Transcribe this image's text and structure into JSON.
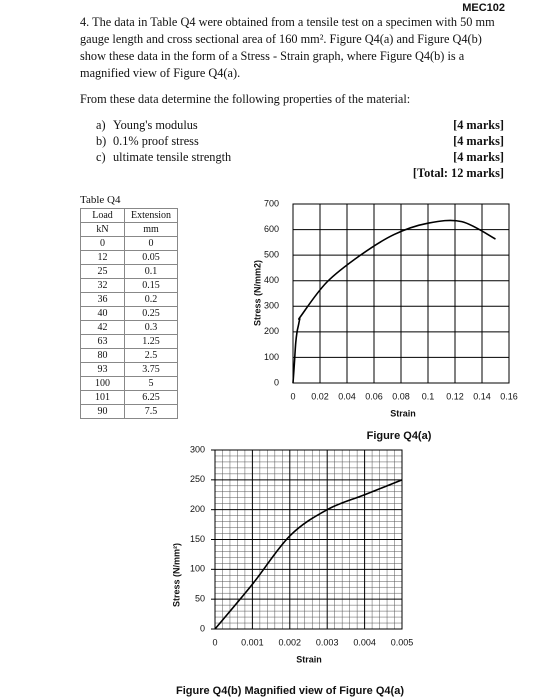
{
  "header": {
    "code": "MEC102"
  },
  "question": {
    "number": "4.",
    "text": "The data in Table Q4 were obtained from a tensile test on a specimen with 50 mm gauge length and cross sectional area of 160 mm². Figure Q4(a) and Figure Q4(b) show these data in the form of a Stress - Strain graph, where Figure Q4(b) is a magnified view of Figure Q4(a).",
    "prompt": "From these data determine the following properties of the material:"
  },
  "items": [
    {
      "label": "a)",
      "text": "Young's modulus",
      "marks": "[4 marks]"
    },
    {
      "label": "b)",
      "text": "0.1% proof stress",
      "marks": "[4 marks]"
    },
    {
      "label": "c)",
      "text": "ultimate tensile strength",
      "marks": "[4 marks]"
    }
  ],
  "total": "[Total: 12 marks]",
  "table": {
    "caption": "Table Q4",
    "header": [
      [
        "Load",
        "Extension"
      ],
      [
        "kN",
        "mm"
      ]
    ],
    "rows": [
      [
        "0",
        "0"
      ],
      [
        "12",
        "0.05"
      ],
      [
        "25",
        "0.1"
      ],
      [
        "32",
        "0.15"
      ],
      [
        "36",
        "0.2"
      ],
      [
        "40",
        "0.25"
      ],
      [
        "42",
        "0.3"
      ],
      [
        "63",
        "1.25"
      ],
      [
        "80",
        "2.5"
      ],
      [
        "93",
        "3.75"
      ],
      [
        "100",
        "5"
      ],
      [
        "101",
        "6.25"
      ],
      [
        "90",
        "7.5"
      ]
    ]
  },
  "chart_data": [
    {
      "type": "line",
      "title": "Figure Q4(a)",
      "xlabel": "Strain",
      "ylabel": "Stress (N/mm2)",
      "x": [
        0,
        0.001,
        0.002,
        0.003,
        0.004,
        0.005,
        0.006,
        0.025,
        0.05,
        0.075,
        0.1,
        0.125,
        0.15
      ],
      "values": [
        0,
        75,
        156,
        200,
        225,
        250,
        263,
        394,
        500,
        581,
        625,
        631,
        563
      ],
      "color": "#000000",
      "xlim": [
        0,
        0.16
      ],
      "xticks": [
        0,
        0.02,
        0.04,
        0.06,
        0.08,
        0.1,
        0.12,
        0.14,
        0.16
      ],
      "ylim": [
        0,
        700
      ],
      "yticks": [
        0,
        100,
        200,
        300,
        400,
        500,
        600,
        700
      ],
      "grid": true
    },
    {
      "type": "line",
      "title": "Figure Q4(b) Magnified view of Figure Q4(a)",
      "xlabel": "Strain",
      "ylabel": "Stress (N/mm²)",
      "x": [
        0,
        0.001,
        0.002,
        0.003,
        0.004,
        0.005
      ],
      "values": [
        0,
        75,
        156,
        200,
        225,
        250
      ],
      "color": "#000000",
      "xlim": [
        0,
        0.005
      ],
      "xticks": [
        0,
        0.001,
        0.002,
        0.003,
        0.004,
        0.005
      ],
      "ylim": [
        0,
        300
      ],
      "yticks": [
        0,
        50,
        100,
        150,
        200,
        250,
        300
      ],
      "grid": true,
      "minor_divisions": 5
    }
  ]
}
